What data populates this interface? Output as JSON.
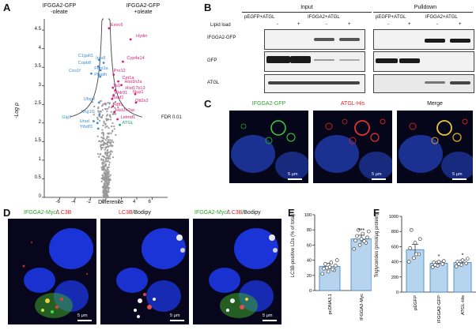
{
  "panels": {
    "A": "A",
    "B": "B",
    "C": "C",
    "D": "D",
    "E": "E",
    "F": "F"
  },
  "panelA": {
    "left_title": "IFGGA2-GFP\n-oleate",
    "right_title": "IFGGA2-GFP\n+oleate",
    "ylabel": "-Log p",
    "xlabel": "Difference",
    "fdr_label": "FDR 0.01",
    "y_ticks": [
      "0",
      "0.5",
      "1",
      "1.5",
      "2",
      "2.5",
      "3",
      "3.5",
      "4",
      "4.5"
    ],
    "x_ticks": [
      "-6",
      "-4",
      "-2",
      "0",
      "2",
      "4",
      "6"
    ],
    "genes_left": [
      {
        "name": "C1galt1",
        "c": "#3a8fd6"
      },
      {
        "name": "Copb8",
        "c": "#3a8fd6"
      },
      {
        "name": "Ces1f",
        "c": "#3a8fd6"
      },
      {
        "name": "Fam3a",
        "c": "#3a8fd6"
      },
      {
        "name": "Phgdh",
        "c": "#3a8fd6"
      },
      {
        "name": "Ufsp2",
        "c": "#3a8fd6"
      },
      {
        "name": "Kng1f1",
        "c": "#3a8fd6"
      },
      {
        "name": "Gig7",
        "c": "#3a8fd6"
      },
      {
        "name": "Urad",
        "c": "#3a8fd6"
      },
      {
        "name": "Ythdf3",
        "c": "#3a8fd6"
      },
      {
        "name": "Ints8",
        "c": "#3a8fd6"
      }
    ],
    "genes_right": [
      {
        "name": "Exoc6",
        "c": "#d81b7a"
      },
      {
        "name": "Hydin",
        "c": "#d81b7a"
      },
      {
        "name": "Cyp4a14",
        "c": "#d81b7a"
      },
      {
        "name": "Pro12",
        "c": "#d81b7a"
      },
      {
        "name": "Cpt1a",
        "c": "#d81b7a"
      },
      {
        "name": "Hist1h2a",
        "c": "#d81b7a"
      },
      {
        "name": "Tk1",
        "c": "#d81b7a"
      },
      {
        "name": "Hist17b13",
        "c": "#d81b7a"
      },
      {
        "name": "Wdr91",
        "c": "#d81b7a"
      },
      {
        "name": "Nup1",
        "c": "#d81b7a"
      },
      {
        "name": "Banf1",
        "c": "#d81b7a"
      },
      {
        "name": "Ott2s2",
        "c": "#d81b7a"
      },
      {
        "name": "Fdft1",
        "c": "#d81b7a"
      },
      {
        "name": "Hist2h2ac",
        "c": "#d81b7a"
      },
      {
        "name": "Letmd1",
        "c": "#d81b7a"
      },
      {
        "name": "ATGL",
        "c": "#1aa37a"
      }
    ]
  },
  "panelB": {
    "input_title": "Input",
    "pulldown_title": "Pulldown",
    "lipid_load": "Lipid load",
    "col_groups": [
      "pEGFP+ATGL",
      "IFGGA2+ATGL",
      "pEGFP+ATGL",
      "IFGGA2+ATGL"
    ],
    "signs": [
      "-",
      "+",
      "-",
      "+",
      "-",
      "+",
      "-",
      "+"
    ],
    "rows": [
      "IFGGA2-GFP",
      "GFP",
      "ATGL"
    ]
  },
  "panelC": {
    "labels": [
      "IFGGA2-GFP",
      "ATGL-His",
      "Merge"
    ],
    "label_colors": [
      "#2ec42e",
      "#e02020",
      "#ffffff"
    ],
    "scale": "5 μm"
  },
  "panelD": {
    "l1a": "IFGGA2-Myc",
    "l1b": "/",
    "l1c": "LC3B",
    "l2a": "LC3B",
    "l2b": "/Bodipy",
    "l3a": "IFGGA2-Myc",
    "l3b": "/",
    "l3c": "LC3B",
    "l3d": "/Bodipy",
    "scale": "5 μm"
  },
  "chart_data": [
    {
      "type": "bar",
      "panel": "E",
      "ylabel": "LC3B-positive LDs (% of total)",
      "categories": [
        "pcDNA3.1",
        "IFGGA2-Myc"
      ],
      "values": [
        32,
        68
      ],
      "errors": [
        4,
        5
      ],
      "ylim": [
        0,
        100
      ],
      "yticks": [
        "0",
        "20",
        "40",
        "60",
        "80",
        "100"
      ],
      "significance": [
        "",
        "***"
      ],
      "points": [
        [
          22,
          25,
          27,
          29,
          31,
          33,
          35,
          37,
          40,
          30,
          28
        ],
        [
          55,
          60,
          63,
          66,
          68,
          70,
          72,
          75,
          78,
          80,
          65
        ]
      ]
    },
    {
      "type": "bar",
      "panel": "F",
      "ylabel": "Triglycerides (pmol/μg protein)",
      "categories": [
        "pEGFP",
        "IFGGA2-GFP",
        "ATGL-His"
      ],
      "values": [
        560,
        380,
        390
      ],
      "errors": [
        70,
        25,
        30
      ],
      "ylim": [
        0,
        1000
      ],
      "yticks": [
        "0",
        "200",
        "400",
        "600",
        "800",
        "1000"
      ],
      "significance": [
        "",
        "*",
        "*"
      ],
      "points": [
        [
          400,
          450,
          500,
          580,
          650,
          700,
          820,
          500
        ],
        [
          330,
          350,
          370,
          390,
          400,
          410,
          360
        ],
        [
          340,
          360,
          380,
          400,
          420,
          440,
          370
        ]
      ]
    }
  ],
  "colors": {
    "bar": "#b7d4ee",
    "bar_edge": "#3d7fc4",
    "left_gene": "#3a8fd6",
    "right_gene": "#d81b7a"
  }
}
